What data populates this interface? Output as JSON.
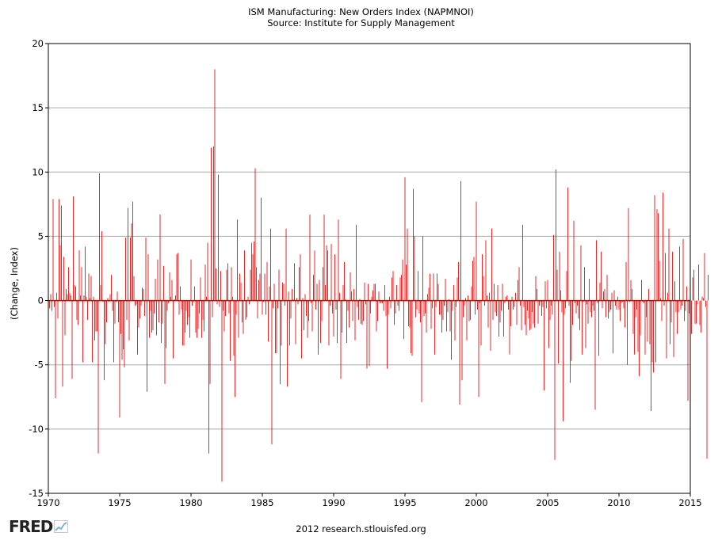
{
  "chart_data": {
    "type": "bar",
    "title": "ISM Manufacturing: New Orders Index (NAPMNOI)",
    "subtitle": "Source: Institute for Supply Management",
    "ylabel": "(Change, Index)",
    "xlabel": "",
    "xlim": [
      1970,
      2015
    ],
    "ylim": [
      -15,
      20
    ],
    "x_ticks": [
      "1970",
      "1975",
      "1980",
      "1985",
      "1990",
      "1995",
      "2000",
      "2005",
      "2010",
      "2015"
    ],
    "y_ticks": [
      "-15",
      "-10",
      "-5",
      "0",
      "5",
      "10",
      "15",
      "20"
    ],
    "grid": "horizontal",
    "bar_color": "#dd0000",
    "start": "1970-01",
    "frequency": "monthly",
    "series": [
      {
        "values": [
          -2.2,
          -0.6,
          0.5,
          -0.8,
          7.9,
          -0.5,
          -7.6,
          0.6,
          -1.4,
          7.9,
          4.3,
          7.4,
          -6.7,
          3.4,
          -2.7,
          0.9,
          0.5,
          2.6,
          0.6,
          0.4,
          -6.1,
          8.1,
          1.2,
          1.1,
          -1.5,
          -1.9,
          3.9,
          0.4,
          2.6,
          -4.8,
          0.4,
          4.2,
          0.3,
          -1.5,
          2.1,
          0.2,
          1.9,
          -4.8,
          0.3,
          -3.1,
          -2.4,
          -2.4,
          -11.9,
          9.9,
          1.2,
          5.4,
          -0.1,
          -6.2,
          -3.4,
          -1.7,
          0.2,
          -0.1,
          0.5,
          2.0,
          -0.8,
          -4.8,
          -1.8,
          -0.1,
          0.7,
          -1.7,
          -9.1,
          -2.6,
          -4.6,
          -3.8,
          -5.2,
          4.9,
          -1.5,
          7.2,
          -3.1,
          4.9,
          6.0,
          7.7,
          1.9,
          -0.4,
          -0.3,
          -4.2,
          -2.1,
          -1.4,
          -0.4,
          1.0,
          0.9,
          -1.2,
          4.9,
          -7.1,
          3.6,
          -2.9,
          -0.8,
          -2.5,
          -2.3,
          -1.0,
          1.7,
          -2.7,
          3.2,
          -1.7,
          6.7,
          -3.3,
          -1.8,
          2.7,
          -6.5,
          -3.7,
          -0.8,
          -0.2,
          2.2,
          0.3,
          1.6,
          -4.5,
          0.1,
          0.4,
          3.6,
          3.7,
          -1.1,
          1.1,
          -0.7,
          -3.5,
          -3.5,
          -2.5,
          -0.8,
          -1.9,
          -1.3,
          -2.9,
          3.2,
          -0.4,
          -0.1,
          1.1,
          -2.5,
          -2.9,
          -2.2,
          -1.0,
          1.8,
          -2.9,
          -1.5,
          -2.4,
          2.8,
          0.3,
          4.5,
          -11.9,
          -6.5,
          11.9,
          -1.3,
          12.0,
          18.0,
          2.5,
          -0.3,
          9.8,
          -0.5,
          2.3,
          -14.1,
          -0.8,
          -2.4,
          -1.2,
          2.4,
          2.9,
          -1.0,
          -4.7,
          2.6,
          0.3,
          -4.3,
          -7.5,
          -1.1,
          6.3,
          -2.9,
          2.1,
          1.4,
          -1.7,
          -2.6,
          3.9,
          -1.5,
          -1.3,
          0.3,
          -0.3,
          2.4,
          4.5,
          3.6,
          4.6,
          10.3,
          2.6,
          -1.4,
          1.6,
          2.1,
          8.0,
          -1.1,
          -0.1,
          2.1,
          -1.1,
          3.0,
          -3.2,
          1.1,
          5.6,
          -11.2,
          -0.6,
          1.3,
          -4.1,
          -4.1,
          -0.6,
          2.4,
          -6.5,
          -3.5,
          1.4,
          1.3,
          -0.4,
          5.6,
          -6.7,
          0.7,
          -3.5,
          -1.4,
          0.9,
          0.1,
          2.9,
          -3.4,
          0.2,
          -0.3,
          2.6,
          3.6,
          -4.5,
          0.2,
          -2.3,
          0.5,
          -1.2,
          -2.9,
          -1.6,
          6.7,
          -0.2,
          -2.4,
          2.0,
          3.9,
          -0.7,
          1.3,
          -4.2,
          1.6,
          -3.3,
          -1.6,
          2.6,
          6.7,
          1.2,
          4.3,
          3.9,
          -3.5,
          -0.4,
          4.4,
          -1.0,
          -2.8,
          3.6,
          -0.7,
          -3.3,
          6.3,
          0.6,
          -6.1,
          -2.5,
          1.2,
          3.0,
          0.1,
          -3.3,
          -0.8,
          -2.1,
          2.2,
          0.7,
          -1.6,
          0.9,
          -3.1,
          5.9,
          -0.5,
          -1.5,
          0.1,
          -1.8,
          -1.9,
          -1.6,
          1.4,
          -0.3,
          -5.3,
          1.3,
          -5.1,
          -1.0,
          0.3,
          0.8,
          1.3,
          1.3,
          -2.4,
          -1.6,
          0.7,
          -0.2,
          -0.2,
          -0.2,
          -0.8,
          1.2,
          -1.2,
          -5.3,
          -1.1,
          0.3,
          -0.6,
          1.8,
          2.3,
          -1.9,
          -1.0,
          1.2,
          -0.4,
          -0.8,
          1.8,
          2.0,
          3.2,
          -3.0,
          9.6,
          2.8,
          5.6,
          -2.0,
          -2.1,
          -4.1,
          -4.3,
          8.7,
          5.0,
          -1.3,
          -0.7,
          2.3,
          -1.0,
          -1.7,
          -7.9,
          5.0,
          -1.2,
          -1.0,
          -2.5,
          0.5,
          1.0,
          2.1,
          -2.2,
          -0.6,
          2.1,
          -4.2,
          -0.5,
          2.1,
          1.3,
          -1.1,
          -1.1,
          -2.5,
          -1.5,
          -0.4,
          1.7,
          -2.4,
          -0.9,
          0.1,
          -2.4,
          -4.6,
          -0.8,
          1.2,
          -3.1,
          -0.5,
          1.8,
          3.0,
          -8.1,
          9.3,
          -6.2,
          -1.3,
          -0.4,
          0.2,
          -3.1,
          0.4,
          -1.6,
          -1.5,
          1.1,
          3.1,
          3.4,
          -1.1,
          7.7,
          -0.7,
          -7.5,
          -0.2,
          -3.5,
          3.6,
          1.9,
          -0.4,
          4.7,
          0.4,
          -2.1,
          0.6,
          -3.9,
          5.6,
          -1.5,
          1.3,
          -0.9,
          -1.2,
          1.2,
          -2.8,
          -1.7,
          -0.8,
          1.3,
          -2.8,
          -0.2,
          0.3,
          0.4,
          -0.7,
          -4.2,
          -2.0,
          0.3,
          -0.7,
          -0.5,
          0.6,
          -1.9,
          1.6,
          2.6,
          -0.4,
          -2.3,
          5.9,
          -0.5,
          -1.9,
          -2.7,
          -0.8,
          -1.4,
          -2.3,
          -2.2,
          -0.9,
          -1.8,
          -2.1,
          1.9,
          0.9,
          -1.8,
          -0.4,
          -0.1,
          -1.2,
          -0.5,
          -7.0,
          1.5,
          -0.6,
          1.6,
          -3.7,
          -1.5,
          -0.4,
          -1.1,
          5.1,
          -12.4,
          10.2,
          2.4,
          -4.9,
          3.8,
          0.8,
          -0.9,
          -9.4,
          -1.1,
          -0.6,
          2.3,
          8.8,
          -0.4,
          -6.4,
          -4.7,
          -1.9,
          6.2,
          -0.2,
          -1.0,
          -0.4,
          -1.4,
          -2.3,
          4.3,
          -4.2,
          -0.1,
          2.6,
          -3.7,
          -0.3,
          -1.8,
          1.7,
          -0.9,
          -1.3,
          -0.4,
          -0.8,
          -8.5,
          4.7,
          -0.2,
          -4.3,
          1.4,
          3.8,
          -0.6,
          0.7,
          0.9,
          -1.3,
          2.0,
          -1.4,
          -0.9,
          -0.7,
          0.6,
          -4.1,
          0.8,
          -0.4,
          -0.7,
          0.3,
          -0.7,
          -1.6,
          -0.2,
          -0.1,
          -0.6,
          -2.1,
          3.0,
          -5.0,
          7.2,
          -0.1,
          1.6,
          0.9,
          -2.6,
          -4.2,
          -1.3,
          -0.7,
          -4.0,
          -5.9,
          -2.7,
          1.6,
          -0.1,
          -0.2,
          -4.2,
          -1.3,
          -3.2,
          0.9,
          -3.4,
          -8.6,
          -4.8,
          -5.6,
          8.2,
          -4.8,
          7.1,
          6.8,
          3.1,
          0.2,
          -1.6,
          8.4,
          -0.4,
          3.7,
          -4.5,
          0.6,
          5.6,
          -3.4,
          -1.7,
          3.8,
          -4.4,
          1.5,
          -0.9,
          -2.6,
          -0.9,
          4.2,
          -0.7,
          -0.4,
          4.8,
          -1.6,
          -0.8,
          1.1,
          -7.8,
          -1.0,
          -0.1,
          -2.6,
          1.8,
          2.4,
          -1.8,
          -1.8,
          -0.3,
          2.8,
          -1.9,
          -2.5,
          0.3,
          0.2,
          3.7,
          -0.5,
          -12.3,
          2.0
        ]
      }
    ]
  },
  "footer": {
    "logo_text": "FRED",
    "credit": "2012 research.stlouisfed.org"
  },
  "colors": {
    "bar": "#dd0000",
    "grid": "#aaaaaa",
    "axis": "#000000",
    "logo_line": "#7fb2d8"
  }
}
